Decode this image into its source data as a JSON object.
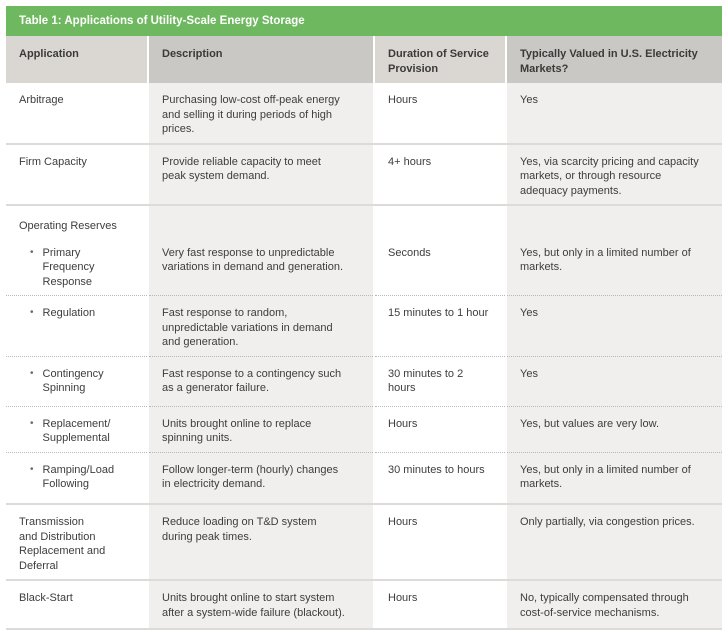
{
  "title": "Table 1: Applications of Utility-Scale Energy Storage",
  "bullet": "•",
  "colors": {
    "title_bar_green": "#6eb860",
    "header_light_gray": "#dad7d3",
    "header_dark_gray": "#c9c8c5",
    "body_shaded_gray": "#f0efed",
    "text": "#3d3d3d"
  },
  "columns": {
    "application": "Application",
    "description": "Description",
    "duration": "Duration of Service Provision",
    "valued": "Typically Valued in U.S. Electricity Markets?"
  },
  "rows": [
    {
      "application": "Arbitrage",
      "description": "Purchasing low-cost off-peak energy and selling it during periods of high prices.",
      "duration": "Hours",
      "valued": "Yes"
    },
    {
      "application": "Firm Capacity",
      "description": "Provide reliable capacity to meet peak system demand.",
      "duration": "4+ hours",
      "valued": "Yes, via scarcity pricing and capacity markets, or through resource adequacy payments."
    },
    {
      "application": "Operating Reserves",
      "description": "",
      "duration": "",
      "valued": ""
    },
    {
      "application": "Primary Frequency Response",
      "description": "Very fast response to unpredictable variations in demand and generation.",
      "duration": "Seconds",
      "valued": "Yes, but only in a limited number of markets."
    },
    {
      "application": "Regulation",
      "description": "Fast response to random, unpredictable variations in demand and generation.",
      "duration": "15 minutes to 1 hour",
      "valued": "Yes"
    },
    {
      "application": "Contingency Spinning",
      "description": "Fast response to a contingency such as a generator failure.",
      "duration": "30 minutes to 2 hours",
      "valued": "Yes"
    },
    {
      "application": "Replacement/ Supplemental",
      "description": "Units brought online to replace spinning units.",
      "duration": "Hours",
      "valued": "Yes, but values are very low."
    },
    {
      "application": "Ramping/Load Following",
      "description": "Follow longer-term (hourly) changes in electricity demand.",
      "duration": "30 minutes to hours",
      "valued": "Yes, but only in a limited number of markets."
    },
    {
      "application": "Transmission\nand Distribution\nReplacement and\nDeferral",
      "description": "Reduce loading on T&D system during peak times.",
      "duration": "Hours",
      "valued": "Only partially, via congestion prices."
    },
    {
      "application": "Black-Start",
      "description": "Units brought online to start system after a system-wide failure (blackout).",
      "duration": "Hours",
      "valued": "No, typically compensated through cost-of-service mechanisms."
    }
  ]
}
